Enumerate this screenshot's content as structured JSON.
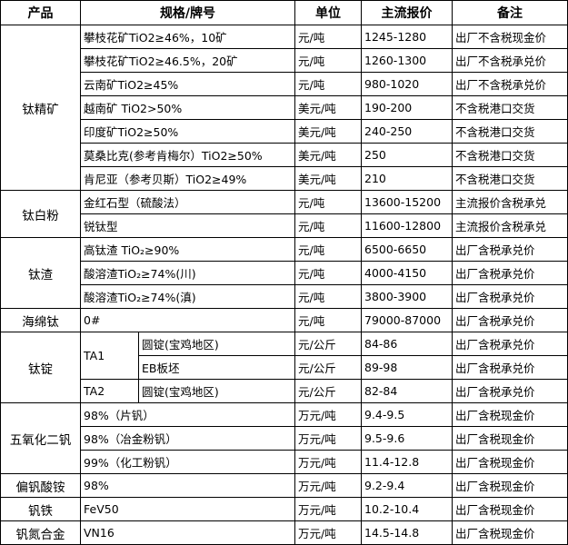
{
  "header": {
    "product": "产品",
    "spec": "规格/牌号",
    "unit": "单位",
    "price": "主流报价",
    "note": "备注"
  },
  "groups": [
    {
      "product": "钛精矿",
      "rows": [
        {
          "spec": "攀枝花矿TiO2≥46%，10矿",
          "unit": "元/吨",
          "price": "1245-1280",
          "note": "出厂不含税现金价"
        },
        {
          "spec": "攀枝花矿TiO2≥46.5%，20矿",
          "unit": "元/吨",
          "price": "1260-1300",
          "note": "出厂不含税承兑价"
        },
        {
          "spec": "云南矿TiO2≥45%",
          "unit": "元/吨",
          "price": "980-1020",
          "note": "出厂不含税承兑价"
        },
        {
          "spec": "越南矿 TiO2>50%",
          "unit": "美元/吨",
          "price": "190-200",
          "note": "不含税港口交货"
        },
        {
          "spec": "印度矿TiO2≥50%",
          "unit": "美元/吨",
          "price": "240-250",
          "note": "不含税港口交货"
        },
        {
          "spec": "莫桑比克(参考肯梅尔）TiO2≥50%",
          "unit": "美元/吨",
          "price": "250",
          "note": "不含税港口交货"
        },
        {
          "spec": "肯尼亚（参考贝斯）TiO2≥49%",
          "unit": "美元/吨",
          "price": "210",
          "note": "不含税港口交货"
        }
      ]
    },
    {
      "product": "钛白粉",
      "rows": [
        {
          "spec": "金红石型（硫酸法）",
          "unit": "元/吨",
          "price": "13600-15200",
          "note": "主流报价含税承兑"
        },
        {
          "spec": "锐钛型",
          "unit": "元/吨",
          "price": "11600-12800",
          "note": "主流报价含税承兑"
        }
      ]
    },
    {
      "product": "钛渣",
      "rows": [
        {
          "spec": "高钛渣 TiO₂≥90%",
          "unit": "元/吨",
          "price": "6500-6650",
          "note": "出厂含税承兑价"
        },
        {
          "spec": "酸溶渣TiO₂≥74%(川)",
          "unit": "元/吨",
          "price": "4000-4150",
          "note": "出厂含税承兑价"
        },
        {
          "spec": "酸溶渣TiO₂≥74%(滇)",
          "unit": "元/吨",
          "price": "3800-3900",
          "note": "出厂含税承兑价"
        }
      ]
    },
    {
      "product": "海绵钛",
      "rows": [
        {
          "spec": "0#",
          "unit": "元/吨",
          "price": "79000-87000",
          "note": "出厂含税承兑价"
        }
      ]
    },
    {
      "product": "钛锭",
      "rows": [
        {
          "grade": "TA1",
          "grade_span": 2,
          "spec": "圆锭(宝鸡地区)",
          "unit": "元/公斤",
          "price": "84-86",
          "note": "出厂含税承兑价"
        },
        {
          "spec": "EB板坯",
          "unit": "元/公斤",
          "price": "89-98",
          "note": "出厂含税承兑价"
        },
        {
          "grade": "TA2",
          "grade_span": 1,
          "spec": "圆锭(宝鸡地区)",
          "unit": "元/公斤",
          "price": "82-84",
          "note": "出厂含税承兑价"
        }
      ]
    },
    {
      "product": "五氧化二钒",
      "rows": [
        {
          "spec": "98%（片钒）",
          "unit": "万元/吨",
          "price": "9.4-9.5",
          "note": "出厂含税现金价"
        },
        {
          "spec": "98%（冶金粉钒）",
          "unit": "万元/吨",
          "price": "9.5-9.6",
          "note": "出厂含税现金价"
        },
        {
          "spec": "99%（化工粉钒）",
          "unit": "万元/吨",
          "price": "11.4-12.8",
          "note": "出厂含税现金价"
        }
      ]
    },
    {
      "product": "偏钒酸铵",
      "rows": [
        {
          "spec": "98%",
          "unit": "万元/吨",
          "price": "9.2-9.4",
          "note": "出厂含税现金价"
        }
      ]
    },
    {
      "product": "钒铁",
      "rows": [
        {
          "spec": "FeV50",
          "unit": "万元/吨",
          "price": "10.2-10.4",
          "note": "出厂含税现金价"
        }
      ]
    },
    {
      "product": "钒氮合金",
      "rows": [
        {
          "spec": "VN16",
          "unit": "万元/吨",
          "price": "14.5-14.8",
          "note": "出厂含税现金价"
        }
      ]
    }
  ]
}
